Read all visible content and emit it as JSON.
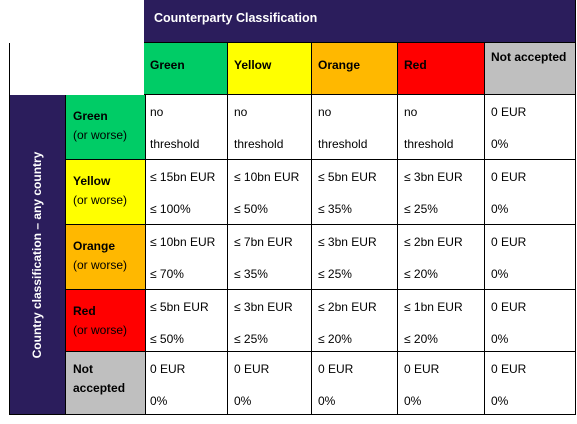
{
  "header": {
    "title": "Counterparty Classification"
  },
  "side_header": {
    "title": "Country classification – any country"
  },
  "columns": [
    {
      "label": "Green",
      "color": "#00cc66"
    },
    {
      "label": "Yellow",
      "color": "#ffff00"
    },
    {
      "label": "Orange",
      "color": "#ffb800"
    },
    {
      "label": "Red",
      "color": "#ff0000"
    },
    {
      "label": "Not accepted",
      "color": "#bfbfbf"
    }
  ],
  "rows": [
    {
      "label": "Green",
      "sub": "(or worse)",
      "color": "#00cc66",
      "cells": [
        [
          "no",
          "threshold"
        ],
        [
          "no",
          "threshold"
        ],
        [
          "no",
          "threshold"
        ],
        [
          "no",
          "threshold"
        ],
        [
          "0 EUR",
          "0%"
        ]
      ]
    },
    {
      "label": "Yellow",
      "sub": "(or worse)",
      "color": "#ffff00",
      "cells": [
        [
          "≤ 15bn EUR",
          "≤ 100%"
        ],
        [
          "≤ 10bn EUR",
          "≤ 50%"
        ],
        [
          "≤ 5bn EUR",
          "≤ 35%"
        ],
        [
          "≤ 3bn EUR",
          "≤ 25%"
        ],
        [
          "0 EUR",
          "0%"
        ]
      ]
    },
    {
      "label": "Orange",
      "sub": "(or worse)",
      "color": "#ffb800",
      "cells": [
        [
          "≤ 10bn EUR",
          "≤ 70%"
        ],
        [
          "≤ 7bn EUR",
          "≤ 35%"
        ],
        [
          "≤ 3bn EUR",
          "≤ 25%"
        ],
        [
          "≤ 2bn EUR",
          "≤ 20%"
        ],
        [
          "0 EUR",
          "0%"
        ]
      ]
    },
    {
      "label": "Red",
      "sub": "(or worse)",
      "color": "#ff0000",
      "cells": [
        [
          "≤ 5bn EUR",
          "≤ 50%"
        ],
        [
          "≤ 3bn EUR",
          "≤ 25%"
        ],
        [
          "≤ 2bn EUR",
          "≤ 20%"
        ],
        [
          "≤ 1bn EUR",
          "≤ 20%"
        ],
        [
          "0 EUR",
          "0%"
        ]
      ]
    },
    {
      "label": "Not accepted",
      "sub": "",
      "color": "#bfbfbf",
      "cells": [
        [
          "0 EUR",
          "0%"
        ],
        [
          "0 EUR",
          "0%"
        ],
        [
          "0 EUR",
          "0%"
        ],
        [
          "0 EUR",
          "0%"
        ],
        [
          "0 EUR",
          "0%"
        ]
      ]
    }
  ]
}
